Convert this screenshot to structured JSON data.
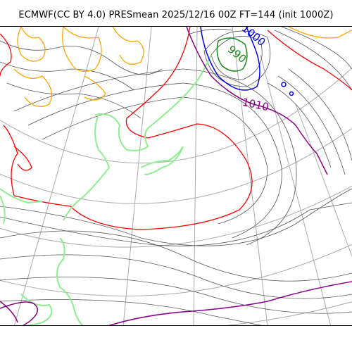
{
  "title": "ECMWF(CC BY 4.0) PRESmean 2025/12/16 00Z FT=144 (init 1000Z)",
  "contour_labels": {
    "low_center": "990",
    "blue_isobar": "1000",
    "purple_isobar": "1010"
  },
  "colors": {
    "isobar_thin": "#555555",
    "isobar_990": "#1a8a1a",
    "isobar_1000": "#0000ee",
    "isobar_1010": "#880088",
    "isobar_1020": "#ff0000",
    "isobar_1030": "#ffa500",
    "coastline": "#90ee90",
    "graticule": "#aaaaaa"
  }
}
